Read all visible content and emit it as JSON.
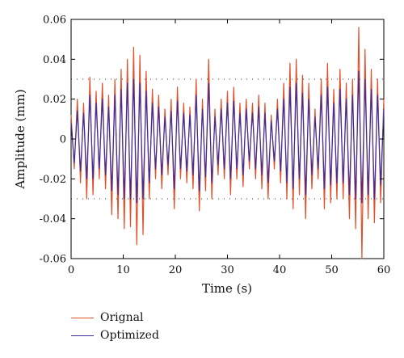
{
  "chart_data": {
    "type": "line",
    "xlabel": "Time (s)",
    "ylabel": "Amplitude (mm)",
    "xlim": [
      0,
      60
    ],
    "ylim": [
      -0.06,
      0.06
    ],
    "xticks": [
      0,
      10,
      20,
      30,
      40,
      50,
      60
    ],
    "xtick_labels": [
      "0",
      "10",
      "20",
      "30",
      "40",
      "50",
      "60"
    ],
    "yticks": [
      0.06,
      0.04,
      0.02,
      0,
      -0.02,
      -0.04,
      -0.06
    ],
    "ytick_labels": [
      "0.06",
      "0.04",
      "0.02",
      "0",
      "-0.02",
      "-0.04",
      "-0.06"
    ],
    "reference_lines": [
      0.03,
      -0.03
    ],
    "legend_position": "below",
    "series": [
      {
        "name": "Orignal",
        "color": "#e0502a",
        "x": [
          0,
          0.6,
          1.2,
          1.8,
          2.4,
          3,
          3.6,
          4.2,
          4.8,
          5.4,
          6,
          6.6,
          7.2,
          7.8,
          8.4,
          9,
          9.6,
          10.2,
          10.8,
          11.4,
          12,
          12.6,
          13.2,
          13.8,
          14.4,
          15,
          15.6,
          16.2,
          16.8,
          17.4,
          18,
          18.6,
          19.2,
          19.8,
          20.4,
          21,
          21.6,
          22.2,
          22.8,
          23.4,
          24,
          24.6,
          25.2,
          25.8,
          26.4,
          27,
          27.6,
          28.2,
          28.8,
          29.4,
          30,
          30.6,
          31.2,
          31.8,
          32.4,
          33,
          33.6,
          34.2,
          34.8,
          35.4,
          36,
          36.6,
          37.2,
          37.8,
          38.4,
          39,
          39.6,
          40.2,
          40.8,
          41.4,
          42,
          42.6,
          43.2,
          43.8,
          44.4,
          45,
          45.6,
          46.2,
          46.8,
          47.4,
          48,
          48.6,
          49.2,
          49.8,
          50.4,
          51,
          51.6,
          52.2,
          52.8,
          53.4,
          54,
          54.6,
          55.2,
          55.8,
          56.4,
          57,
          57.6,
          58.2,
          58.8,
          59.4,
          60
        ],
        "values": [
          0.012,
          -0.015,
          0.02,
          -0.022,
          0.018,
          -0.03,
          0.031,
          -0.028,
          0.024,
          -0.02,
          0.028,
          -0.025,
          0.022,
          -0.038,
          0.03,
          -0.04,
          0.035,
          -0.045,
          0.04,
          -0.044,
          0.046,
          -0.053,
          0.042,
          -0.048,
          0.034,
          -0.03,
          0.025,
          -0.02,
          0.022,
          -0.025,
          0.015,
          -0.018,
          0.02,
          -0.035,
          0.026,
          -0.02,
          0.018,
          -0.022,
          0.016,
          -0.025,
          0.03,
          -0.036,
          0.02,
          -0.026,
          0.04,
          -0.03,
          0.015,
          -0.018,
          0.02,
          -0.02,
          0.024,
          -0.028,
          0.026,
          -0.02,
          0.018,
          -0.024,
          0.02,
          -0.015,
          0.018,
          -0.02,
          0.022,
          -0.025,
          0.018,
          -0.03,
          0.012,
          -0.015,
          0.02,
          -0.022,
          0.028,
          -0.03,
          0.038,
          -0.035,
          0.04,
          -0.028,
          0.032,
          -0.04,
          0.028,
          -0.025,
          0.015,
          -0.02,
          0.03,
          -0.035,
          0.038,
          -0.032,
          0.025,
          -0.03,
          0.035,
          -0.03,
          0.028,
          -0.04,
          0.03,
          -0.045,
          0.056,
          -0.06,
          0.045,
          -0.04,
          0.035,
          -0.042,
          0.03,
          -0.032,
          0.02
        ]
      },
      {
        "name": "Optimized",
        "color": "#3b2f9e",
        "x": [
          0,
          0.6,
          1.2,
          1.8,
          2.4,
          3,
          3.6,
          4.2,
          4.8,
          5.4,
          6,
          6.6,
          7.2,
          7.8,
          8.4,
          9,
          9.6,
          10.2,
          10.8,
          11.4,
          12,
          12.6,
          13.2,
          13.8,
          14.4,
          15,
          15.6,
          16.2,
          16.8,
          17.4,
          18,
          18.6,
          19.2,
          19.8,
          20.4,
          21,
          21.6,
          22.2,
          22.8,
          23.4,
          24,
          24.6,
          25.2,
          25.8,
          26.4,
          27,
          27.6,
          28.2,
          28.8,
          29.4,
          30,
          30.6,
          31.2,
          31.8,
          32.4,
          33,
          33.6,
          34.2,
          34.8,
          35.4,
          36,
          36.6,
          37.2,
          37.8,
          38.4,
          39,
          39.6,
          40.2,
          40.8,
          41.4,
          42,
          42.6,
          43.2,
          43.8,
          44.4,
          45,
          45.6,
          46.2,
          46.8,
          47.4,
          48,
          48.6,
          49.2,
          49.8,
          50.4,
          51,
          51.6,
          52.2,
          52.8,
          53.4,
          54,
          54.6,
          55.2,
          55.8,
          56.4,
          57,
          57.6,
          58.2,
          58.8,
          59.4,
          60
        ],
        "values": [
          0.008,
          -0.012,
          0.014,
          -0.016,
          0.013,
          -0.02,
          0.022,
          -0.02,
          0.018,
          -0.015,
          0.02,
          -0.018,
          0.016,
          -0.026,
          0.022,
          -0.028,
          0.025,
          -0.03,
          0.028,
          -0.03,
          0.03,
          -0.032,
          0.028,
          -0.03,
          0.024,
          -0.022,
          0.018,
          -0.015,
          0.016,
          -0.018,
          0.011,
          -0.013,
          0.014,
          -0.025,
          0.019,
          -0.015,
          0.013,
          -0.016,
          0.012,
          -0.018,
          0.022,
          -0.026,
          0.015,
          -0.019,
          0.028,
          -0.022,
          0.011,
          -0.013,
          0.015,
          -0.015,
          0.018,
          -0.02,
          0.019,
          -0.015,
          0.013,
          -0.018,
          0.015,
          -0.011,
          0.013,
          -0.015,
          0.016,
          -0.018,
          0.013,
          -0.022,
          0.009,
          -0.011,
          0.015,
          -0.016,
          0.02,
          -0.022,
          0.026,
          -0.025,
          0.028,
          -0.02,
          0.023,
          -0.028,
          0.02,
          -0.018,
          0.011,
          -0.015,
          0.022,
          -0.025,
          0.026,
          -0.023,
          0.018,
          -0.022,
          0.025,
          -0.022,
          0.02,
          -0.028,
          0.022,
          -0.03,
          0.034,
          -0.032,
          0.03,
          -0.028,
          0.025,
          -0.03,
          0.022,
          -0.023,
          0.015
        ]
      }
    ]
  }
}
